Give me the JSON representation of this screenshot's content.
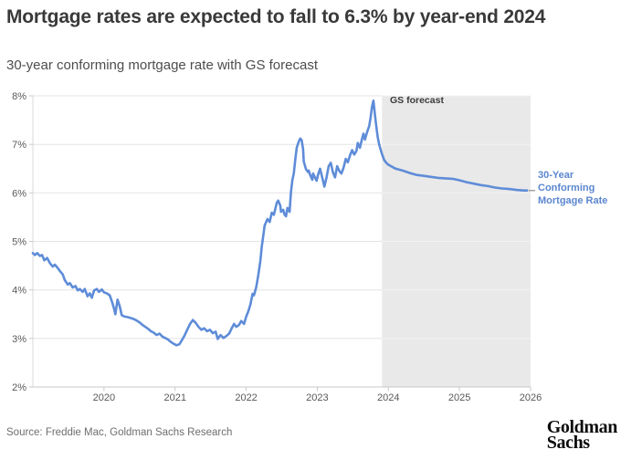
{
  "header": {
    "title": "Mortgage rates are expected to fall to 6.3% by year-end 2024",
    "subtitle": "30-year conforming mortgage rate with GS forecast"
  },
  "footer": {
    "source": "Source: Freddie Mac, Goldman Sachs Research",
    "logo_line1": "Goldman",
    "logo_line2": "Sachs"
  },
  "chart_data": {
    "type": "line",
    "title": "Mortgage rates are expected to fall to 6.3% by year-end 2024",
    "subtitle": "30-year conforming mortgage rate with GS forecast",
    "xlabel": "",
    "ylabel": "",
    "xlim": [
      2019,
      2026
    ],
    "ylim": [
      2,
      8
    ],
    "grid": "horizontal",
    "legend_position": "right-annotation",
    "line_color": "#5e8cd8",
    "axis_text_color": "#585858",
    "gridline_color": "#e4e4e4",
    "gridline_color_in_shade": "#f3f3f3",
    "bottom_axis_color": "#c9c9c9",
    "left_axis_color": "#d9d9d9",
    "x_ticks": [
      {
        "value": 2020,
        "label": "2020"
      },
      {
        "value": 2021,
        "label": "2021"
      },
      {
        "value": 2022,
        "label": "2022"
      },
      {
        "value": 2023,
        "label": "2023"
      },
      {
        "value": 2024,
        "label": "2024"
      },
      {
        "value": 2025,
        "label": "2025"
      },
      {
        "value": 2026,
        "label": "2026"
      }
    ],
    "y_ticks": [
      {
        "value": 8,
        "label": "8%"
      },
      {
        "value": 7,
        "label": "7%"
      },
      {
        "value": 6,
        "label": "6%"
      },
      {
        "value": 5,
        "label": "5%"
      },
      {
        "value": 4,
        "label": "4%"
      },
      {
        "value": 3,
        "label": "3%"
      },
      {
        "value": 2,
        "label": "2%"
      }
    ],
    "forecast_region": {
      "label": "GS forecast",
      "start": 2023.91,
      "end": 2026,
      "fill": "#e9e9e9"
    },
    "series_label": "30-Year Conforming Mortgage Rate",
    "series": [
      {
        "name": "30-Year Conforming Mortgage Rate",
        "role": "historical",
        "points": [
          [
            2019.0,
            4.76
          ],
          [
            2019.03,
            4.72
          ],
          [
            2019.06,
            4.76
          ],
          [
            2019.1,
            4.7
          ],
          [
            2019.13,
            4.72
          ],
          [
            2019.16,
            4.61
          ],
          [
            2019.2,
            4.66
          ],
          [
            2019.24,
            4.55
          ],
          [
            2019.28,
            4.48
          ],
          [
            2019.31,
            4.52
          ],
          [
            2019.35,
            4.45
          ],
          [
            2019.38,
            4.39
          ],
          [
            2019.42,
            4.32
          ],
          [
            2019.45,
            4.2
          ],
          [
            2019.49,
            4.11
          ],
          [
            2019.52,
            4.14
          ],
          [
            2019.56,
            4.05
          ],
          [
            2019.6,
            4.08
          ],
          [
            2019.63,
            3.99
          ],
          [
            2019.66,
            4.02
          ],
          [
            2019.7,
            3.96
          ],
          [
            2019.73,
            4.02
          ],
          [
            2019.77,
            3.87
          ],
          [
            2019.8,
            3.93
          ],
          [
            2019.83,
            3.84
          ],
          [
            2019.86,
            3.99
          ],
          [
            2019.9,
            4.02
          ],
          [
            2019.93,
            3.96
          ],
          [
            2019.97,
            4.01
          ],
          [
            2020.0,
            3.95
          ],
          [
            2020.04,
            3.93
          ],
          [
            2020.08,
            3.89
          ],
          [
            2020.11,
            3.77
          ],
          [
            2020.14,
            3.62
          ],
          [
            2020.16,
            3.5
          ],
          [
            2020.19,
            3.8
          ],
          [
            2020.22,
            3.67
          ],
          [
            2020.25,
            3.48
          ],
          [
            2020.29,
            3.45
          ],
          [
            2020.33,
            3.44
          ],
          [
            2020.38,
            3.42
          ],
          [
            2020.42,
            3.4
          ],
          [
            2020.46,
            3.37
          ],
          [
            2020.5,
            3.33
          ],
          [
            2020.54,
            3.28
          ],
          [
            2020.58,
            3.24
          ],
          [
            2020.62,
            3.2
          ],
          [
            2020.66,
            3.15
          ],
          [
            2020.7,
            3.12
          ],
          [
            2020.74,
            3.07
          ],
          [
            2020.78,
            3.1
          ],
          [
            2020.82,
            3.04
          ],
          [
            2020.86,
            3.01
          ],
          [
            2020.9,
            2.98
          ],
          [
            2020.94,
            2.93
          ],
          [
            2020.98,
            2.89
          ],
          [
            2021.02,
            2.86
          ],
          [
            2021.06,
            2.88
          ],
          [
            2021.09,
            2.95
          ],
          [
            2021.13,
            3.05
          ],
          [
            2021.17,
            3.18
          ],
          [
            2021.21,
            3.3
          ],
          [
            2021.25,
            3.38
          ],
          [
            2021.29,
            3.32
          ],
          [
            2021.33,
            3.24
          ],
          [
            2021.37,
            3.18
          ],
          [
            2021.41,
            3.21
          ],
          [
            2021.45,
            3.15
          ],
          [
            2021.49,
            3.18
          ],
          [
            2021.53,
            3.11
          ],
          [
            2021.57,
            3.14
          ],
          [
            2021.6,
            2.99
          ],
          [
            2021.64,
            3.07
          ],
          [
            2021.68,
            3.01
          ],
          [
            2021.72,
            3.05
          ],
          [
            2021.76,
            3.1
          ],
          [
            2021.8,
            3.22
          ],
          [
            2021.83,
            3.3
          ],
          [
            2021.86,
            3.24
          ],
          [
            2021.9,
            3.28
          ],
          [
            2021.93,
            3.36
          ],
          [
            2021.97,
            3.3
          ],
          [
            2022.0,
            3.45
          ],
          [
            2022.03,
            3.56
          ],
          [
            2022.06,
            3.7
          ],
          [
            2022.09,
            3.92
          ],
          [
            2022.11,
            3.89
          ],
          [
            2022.14,
            4.05
          ],
          [
            2022.17,
            4.3
          ],
          [
            2022.2,
            4.6
          ],
          [
            2022.22,
            4.9
          ],
          [
            2022.24,
            5.12
          ],
          [
            2022.26,
            5.33
          ],
          [
            2022.3,
            5.46
          ],
          [
            2022.33,
            5.4
          ],
          [
            2022.36,
            5.59
          ],
          [
            2022.39,
            5.55
          ],
          [
            2022.43,
            5.8
          ],
          [
            2022.45,
            5.84
          ],
          [
            2022.48,
            5.74
          ],
          [
            2022.49,
            5.61
          ],
          [
            2022.52,
            5.65
          ],
          [
            2022.54,
            5.55
          ],
          [
            2022.56,
            5.52
          ],
          [
            2022.58,
            5.69
          ],
          [
            2022.61,
            5.61
          ],
          [
            2022.63,
            6.02
          ],
          [
            2022.65,
            6.27
          ],
          [
            2022.67,
            6.4
          ],
          [
            2022.69,
            6.68
          ],
          [
            2022.71,
            6.93
          ],
          [
            2022.74,
            7.06
          ],
          [
            2022.76,
            7.12
          ],
          [
            2022.78,
            7.09
          ],
          [
            2022.8,
            6.9
          ],
          [
            2022.81,
            6.65
          ],
          [
            2022.84,
            6.49
          ],
          [
            2022.87,
            6.43
          ],
          [
            2022.88,
            6.46
          ],
          [
            2022.9,
            6.37
          ],
          [
            2022.93,
            6.27
          ],
          [
            2022.94,
            6.4
          ],
          [
            2022.97,
            6.31
          ],
          [
            2022.99,
            6.25
          ],
          [
            2023.01,
            6.37
          ],
          [
            2023.04,
            6.5
          ],
          [
            2023.08,
            6.25
          ],
          [
            2023.1,
            6.13
          ],
          [
            2023.13,
            6.32
          ],
          [
            2023.16,
            6.55
          ],
          [
            2023.19,
            6.62
          ],
          [
            2023.22,
            6.42
          ],
          [
            2023.25,
            6.32
          ],
          [
            2023.28,
            6.55
          ],
          [
            2023.31,
            6.45
          ],
          [
            2023.34,
            6.4
          ],
          [
            2023.37,
            6.52
          ],
          [
            2023.4,
            6.7
          ],
          [
            2023.43,
            6.63
          ],
          [
            2023.46,
            6.77
          ],
          [
            2023.49,
            6.88
          ],
          [
            2023.52,
            6.79
          ],
          [
            2023.55,
            6.86
          ],
          [
            2023.57,
            7.03
          ],
          [
            2023.6,
            6.93
          ],
          [
            2023.63,
            7.12
          ],
          [
            2023.65,
            7.22
          ],
          [
            2023.67,
            7.1
          ],
          [
            2023.7,
            7.25
          ],
          [
            2023.73,
            7.38
          ],
          [
            2023.75,
            7.55
          ],
          [
            2023.77,
            7.78
          ],
          [
            2023.79,
            7.9
          ],
          [
            2023.81,
            7.62
          ],
          [
            2023.83,
            7.38
          ],
          [
            2023.85,
            7.15
          ],
          [
            2023.87,
            7.0
          ],
          [
            2023.89,
            6.9
          ],
          [
            2023.91,
            6.8
          ]
        ]
      },
      {
        "name": "GS forecast",
        "role": "forecast",
        "points": [
          [
            2023.91,
            6.8
          ],
          [
            2023.94,
            6.68
          ],
          [
            2023.97,
            6.62
          ],
          [
            2024.0,
            6.58
          ],
          [
            2024.1,
            6.5
          ],
          [
            2024.2,
            6.46
          ],
          [
            2024.3,
            6.41
          ],
          [
            2024.4,
            6.37
          ],
          [
            2024.5,
            6.35
          ],
          [
            2024.6,
            6.33
          ],
          [
            2024.7,
            6.31
          ],
          [
            2024.8,
            6.3
          ],
          [
            2024.9,
            6.29
          ],
          [
            2025.0,
            6.26
          ],
          [
            2025.1,
            6.22
          ],
          [
            2025.2,
            6.19
          ],
          [
            2025.3,
            6.16
          ],
          [
            2025.4,
            6.14
          ],
          [
            2025.5,
            6.11
          ],
          [
            2025.6,
            6.09
          ],
          [
            2025.7,
            6.08
          ],
          [
            2025.8,
            6.06
          ],
          [
            2025.9,
            6.05
          ],
          [
            2025.95,
            6.05
          ]
        ]
      }
    ]
  }
}
